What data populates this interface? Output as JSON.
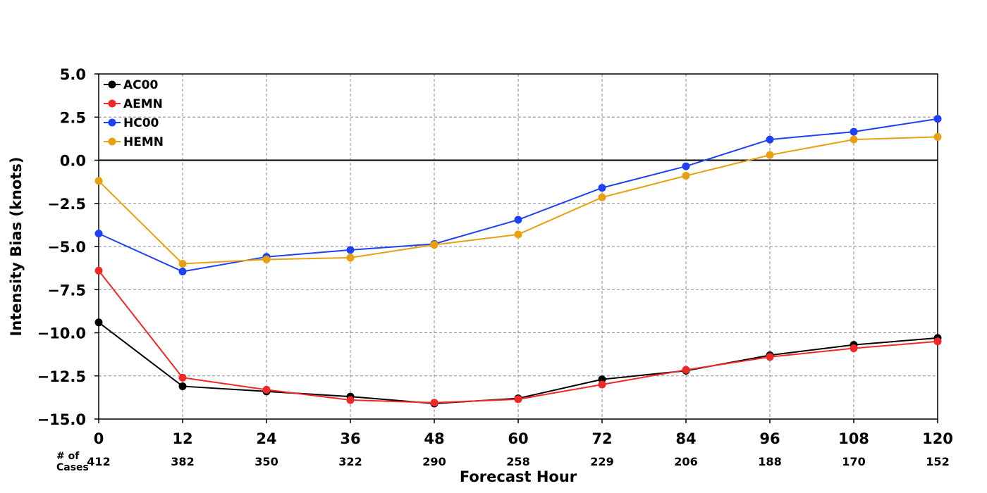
{
  "chart_data": {
    "type": "line",
    "title": "",
    "xlabel": "Forecast Hour",
    "ylabel": "Intensity Bias (knots)",
    "x": [
      0,
      12,
      24,
      36,
      48,
      60,
      72,
      84,
      96,
      108,
      120
    ],
    "x_tick_labels": [
      "0",
      "12",
      "24",
      "36",
      "48",
      "60",
      "72",
      "84",
      "96",
      "108",
      "120"
    ],
    "xlim": [
      0,
      120
    ],
    "ylim": [
      -15.0,
      5.0
    ],
    "y_ticks": [
      5.0,
      2.5,
      0.0,
      -2.5,
      -5.0,
      -7.5,
      -10.0,
      -12.5,
      -15.0
    ],
    "y_tick_labels": [
      "5.0",
      "2.5",
      "0.0",
      "−2.5",
      "−5.0",
      "−7.5",
      "−10.0",
      "−12.5",
      "−15.0"
    ],
    "cases_label_line1": "# of",
    "cases_label_line2": "Cases",
    "cases": [
      "412",
      "382",
      "350",
      "322",
      "290",
      "258",
      "229",
      "206",
      "188",
      "170",
      "152"
    ],
    "grid": true,
    "zero_line": true,
    "legend_position": "top-left",
    "series": [
      {
        "name": "AC00",
        "color": "#000000",
        "values": [
          -9.4,
          -13.1,
          -13.4,
          -13.7,
          -14.1,
          -13.8,
          -12.7,
          -12.2,
          -11.3,
          -10.7,
          -10.3
        ]
      },
      {
        "name": "AEMN",
        "color": "#f02828",
        "values": [
          -6.4,
          -12.6,
          -13.3,
          -13.9,
          -14.05,
          -13.85,
          -13.0,
          -12.15,
          -11.4,
          -10.9,
          -10.5
        ]
      },
      {
        "name": "HC00",
        "color": "#2040f8",
        "values": [
          -4.25,
          -6.45,
          -5.6,
          -5.2,
          -4.85,
          -3.45,
          -1.6,
          -0.35,
          1.2,
          1.65,
          2.4
        ]
      },
      {
        "name": "HEMN",
        "color": "#e8a010",
        "values": [
          -1.2,
          -6.0,
          -5.75,
          -5.65,
          -4.9,
          -4.3,
          -2.15,
          -0.9,
          0.3,
          1.2,
          1.35
        ]
      }
    ]
  }
}
